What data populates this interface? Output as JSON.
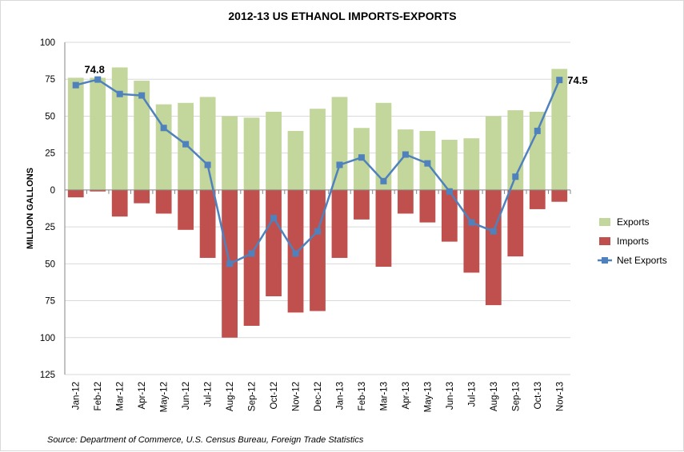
{
  "chart_data": {
    "type": "bar",
    "title": "2012-13 US ETHANOL IMPORTS-EXPORTS",
    "ylabel": "MILLION GALLONS",
    "xlabel": "",
    "ylim": [
      -125,
      100
    ],
    "yticks": [
      {
        "value": 100,
        "label": "100"
      },
      {
        "value": 75,
        "label": "75"
      },
      {
        "value": 50,
        "label": "50"
      },
      {
        "value": 25,
        "label": "25"
      },
      {
        "value": 0,
        "label": "0"
      },
      {
        "value": -25,
        "label": "25"
      },
      {
        "value": -50,
        "label": "50"
      },
      {
        "value": -75,
        "label": "75"
      },
      {
        "value": -100,
        "label": "100"
      },
      {
        "value": -125,
        "label": "125"
      }
    ],
    "grid": true,
    "legend_position": "right",
    "categories": [
      "Jan-12",
      "Feb-12",
      "Mar-12",
      "Apr-12",
      "May-12",
      "Jun-12",
      "Jul-12",
      "Aug-12",
      "Sep-12",
      "Oct-12",
      "Nov-12",
      "Dec-12",
      "Jan-13",
      "Feb-13",
      "Mar-13",
      "Apr-13",
      "May-13",
      "Jun-13",
      "Jul-13",
      "Aug-13",
      "Sep-13",
      "Oct-13",
      "Nov-13"
    ],
    "series": [
      {
        "name": "Exports",
        "kind": "bar",
        "color": "#c3d69b",
        "values": [
          76,
          76,
          83,
          74,
          58,
          59,
          63,
          50,
          49,
          53,
          40,
          55,
          63,
          42,
          59,
          41,
          40,
          34,
          35,
          50,
          54,
          53,
          82
        ]
      },
      {
        "name": "Imports",
        "kind": "bar",
        "color": "#c0504d",
        "values": [
          -5,
          -1,
          -18,
          -9,
          -16,
          -27,
          -46,
          -100,
          -92,
          -72,
          -83,
          -82,
          -46,
          -20,
          -52,
          -16,
          -22,
          -35,
          -56,
          -78,
          -45,
          -13,
          -8
        ]
      },
      {
        "name": "Net Exports",
        "kind": "line",
        "color": "#4f81bd",
        "values": [
          71,
          74.8,
          65,
          64,
          42,
          31,
          17,
          -50,
          -43,
          -19,
          -43,
          -28,
          17,
          22,
          6,
          24,
          18,
          -1,
          -22,
          -28,
          9,
          40,
          74.5
        ]
      }
    ],
    "annotations": [
      {
        "label": "74.8",
        "category": "Feb-12",
        "value": 74.8
      },
      {
        "label": "74.5",
        "category": "Nov-13",
        "value": 74.5
      }
    ],
    "source": "Source:  Department of Commerce,  U.S. Census Bureau, Foreign Trade Statistics"
  }
}
